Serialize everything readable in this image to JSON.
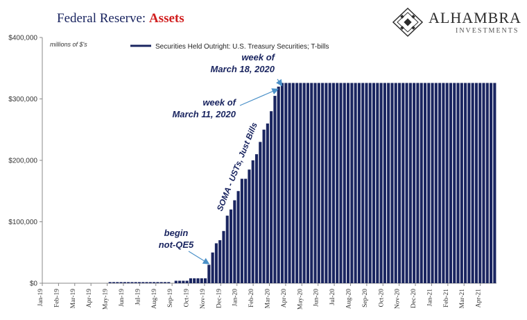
{
  "header": {
    "title_prefix": "Federal Reserve: ",
    "title_accent": "Assets",
    "logo_name": "ALHAMBRA",
    "logo_sub": "INVESTMENTS"
  },
  "colors": {
    "bar": "#1a2560",
    "title": "#1a2560",
    "accent": "#d11f1f"
  },
  "chart_data": {
    "type": "bar",
    "unit_label": "millions of $'s",
    "legend": "Securities Held Outright: U.S. Treasury Securities; T-bills",
    "legend_position": "top",
    "grid": false,
    "ylim": [
      0,
      400000
    ],
    "y_ticks": [
      0,
      100000,
      200000,
      300000,
      400000
    ],
    "y_tick_labels": [
      "$0",
      "$100,000",
      "$200,000",
      "$300,000",
      "$400,000"
    ],
    "x_tick_labels": [
      "Jan-19",
      "Feb-19",
      "Mar-19",
      "Apr-19",
      "May-19",
      "Jun-19",
      "Jul-19",
      "Aug-19",
      "Sep-19",
      "Oct-19",
      "Nov-19",
      "Dec-19",
      "Jan-20",
      "Feb-20",
      "Mar-20",
      "Apr-20",
      "May-20",
      "Jun-20",
      "Jul-20",
      "Aug-20",
      "Sep-20",
      "Oct-20",
      "Nov-20",
      "Dec-20",
      "Jan-21",
      "Feb-21",
      "Mar-21",
      "Apr-21"
    ],
    "series": [
      {
        "name": "Securities Held Outright: U.S. Treasury Securities; T-bills",
        "values": [
          0,
          0,
          0,
          0,
          0,
          0,
          0,
          0,
          0,
          0,
          0,
          0,
          0,
          0,
          0,
          0,
          0,
          0,
          1800,
          1800,
          1800,
          1800,
          1800,
          1800,
          1800,
          1800,
          1800,
          1800,
          1800,
          1800,
          1800,
          1800,
          1800,
          1800,
          1800,
          0,
          4000,
          4000,
          4000,
          4000,
          8000,
          8000,
          8000,
          8000,
          8000,
          30000,
          50000,
          65000,
          70000,
          85000,
          110000,
          120000,
          135000,
          150000,
          170000,
          170000,
          185000,
          200000,
          210000,
          230000,
          250000,
          260000,
          280000,
          305000,
          320000,
          326000,
          326000,
          326000,
          326000,
          326000,
          326000,
          326000,
          326000,
          326000,
          326000,
          326000,
          326000,
          326000,
          326000,
          326000,
          326000,
          326000,
          326000,
          326000,
          326000,
          326000,
          326000,
          326000,
          326000,
          326000,
          326000,
          326000,
          326000,
          326000,
          326000,
          326000,
          326000,
          326000,
          326000,
          326000,
          326000,
          326000,
          326000,
          326000,
          326000,
          326000,
          326000,
          326000,
          326000,
          326000,
          326000,
          326000,
          326000,
          326000,
          326000,
          326000,
          326000,
          326000,
          326000,
          326000,
          326000,
          326000,
          326000,
          326000
        ]
      }
    ],
    "annotations": [
      {
        "lines": [
          "week of",
          "March 18, 2020"
        ],
        "bar_index": 65
      },
      {
        "lines": [
          "week of",
          "March 11, 2020"
        ],
        "bar_index": 64
      },
      {
        "lines": [
          "begin",
          "not-QE5"
        ],
        "bar_index": 45
      },
      {
        "lines": [
          "SOMA - USTs, Just Bills"
        ],
        "rotated": true
      }
    ]
  }
}
